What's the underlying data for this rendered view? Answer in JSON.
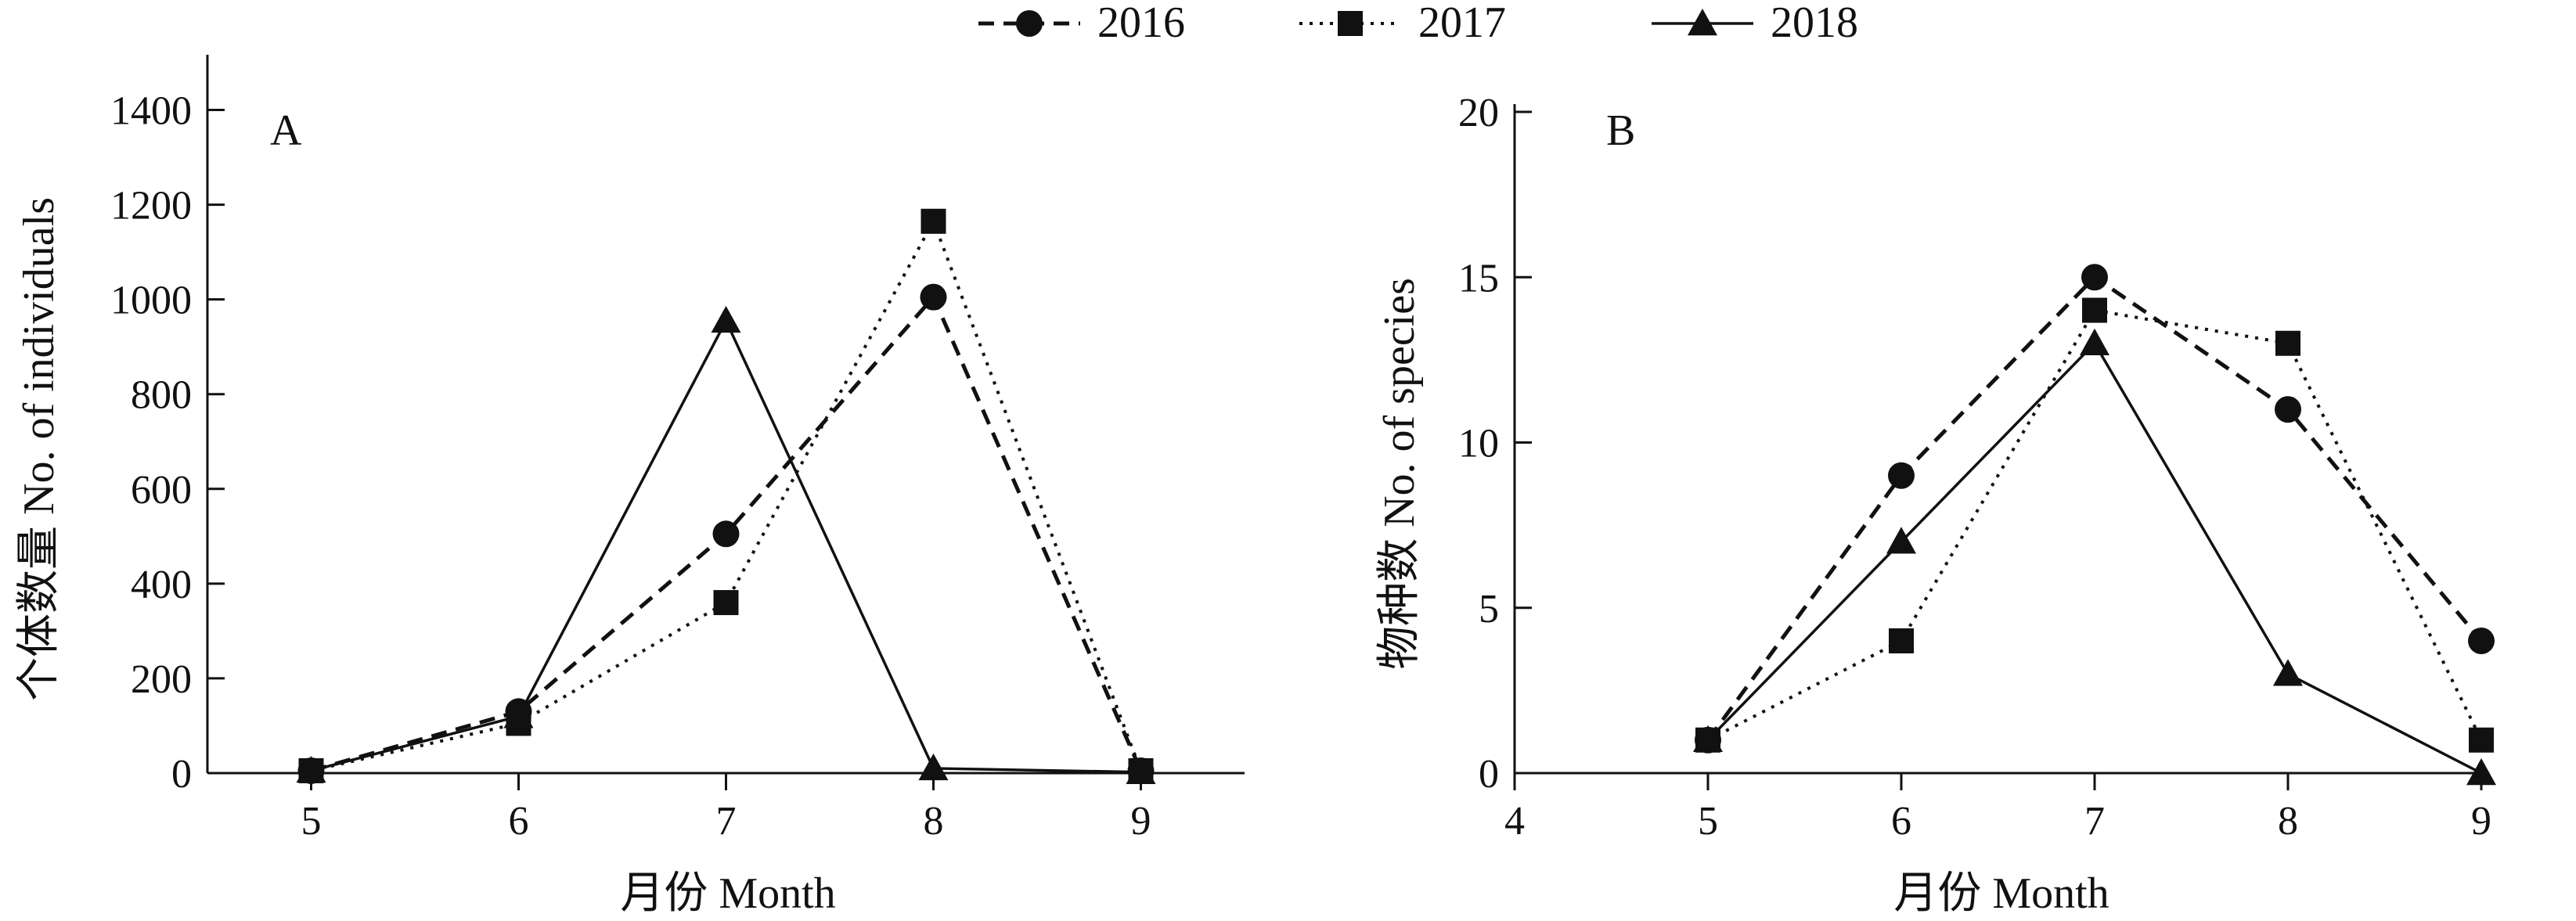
{
  "legend": {
    "placement": "top-center",
    "items": [
      {
        "label": "2016",
        "marker": "circle",
        "line": "dashed"
      },
      {
        "label": "2017",
        "marker": "square",
        "line": "dotted"
      },
      {
        "label": "2018",
        "marker": "triangle",
        "line": "solid"
      }
    ]
  },
  "chart_data": [
    {
      "type": "line",
      "panel": "A",
      "xlabel": "月份 Month",
      "ylabel": "个体数量 No. of individuals",
      "x": [
        5,
        6,
        7,
        8,
        9
      ],
      "xticks": [
        "5",
        "6",
        "7",
        "8",
        "9"
      ],
      "xlim": [
        4.5,
        9.5
      ],
      "ylim": [
        0,
        1500
      ],
      "yticks": [
        "0",
        "200",
        "400",
        "600",
        "800",
        "1000",
        "1200",
        "1400"
      ],
      "grid": false,
      "series": [
        {
          "name": "2016",
          "values": [
            5,
            130,
            505,
            1005,
            5
          ]
        },
        {
          "name": "2017",
          "values": [
            5,
            105,
            360,
            1165,
            5
          ]
        },
        {
          "name": "2018",
          "values": [
            5,
            120,
            955,
            10,
            2
          ]
        }
      ]
    },
    {
      "type": "line",
      "panel": "B",
      "xlabel": "月份 Month",
      "ylabel": "物种数 No. of species",
      "x": [
        5,
        6,
        7,
        8,
        9
      ],
      "xticks": [
        "4",
        "5",
        "6",
        "7",
        "8",
        "9"
      ],
      "xlim": [
        4,
        9
      ],
      "ylim": [
        0,
        20
      ],
      "yticks": [
        "0",
        "5",
        "10",
        "15",
        "20"
      ],
      "grid": false,
      "series": [
        {
          "name": "2016",
          "values": [
            1,
            9,
            15,
            11,
            4
          ]
        },
        {
          "name": "2017",
          "values": [
            1,
            4,
            14,
            13,
            1
          ]
        },
        {
          "name": "2018",
          "values": [
            1,
            7,
            13,
            3,
            0
          ]
        }
      ]
    }
  ]
}
